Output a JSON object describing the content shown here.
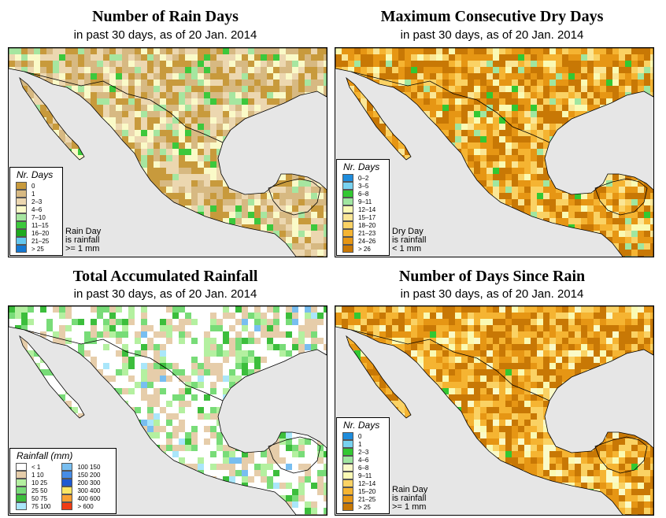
{
  "panels": [
    {
      "title": "Number of Rain Days",
      "subtitle": "in past 30 days, as of  20 Jan. 2014",
      "legend_title": "Nr. Days",
      "legend": [
        {
          "label": "0",
          "color": "#c89a3c"
        },
        {
          "label": "1",
          "color": "#d7b982"
        },
        {
          "label": "2–3",
          "color": "#ecd7b0"
        },
        {
          "label": "4–6",
          "color": "#fafac8"
        },
        {
          "label": "7–10",
          "color": "#a6e6a0"
        },
        {
          "label": "11–15",
          "color": "#3cc83c"
        },
        {
          "label": "16–20",
          "color": "#1eaa1e"
        },
        {
          "label": "21–25",
          "color": "#64c8f0"
        },
        {
          "label": "> 25",
          "color": "#1478d2"
        }
      ],
      "note": [
        "Rain Day",
        "is rainfall",
        ">= 1 mm"
      ]
    },
    {
      "title": "Maximum Consecutive Dry Days",
      "subtitle": "in past 30 days, as of  20 Jan. 2014",
      "legend_title": "Nr. Days",
      "legend": [
        {
          "label": "0–2",
          "color": "#1e8cdc"
        },
        {
          "label": "3–5",
          "color": "#78d2f0"
        },
        {
          "label": "6–8",
          "color": "#32c832"
        },
        {
          "label": "9–11",
          "color": "#a0e6a0"
        },
        {
          "label": "12–14",
          "color": "#fafab4"
        },
        {
          "label": "15–17",
          "color": "#fae696"
        },
        {
          "label": "18–20",
          "color": "#fad264"
        },
        {
          "label": "21–23",
          "color": "#f5b432"
        },
        {
          "label": "24–26",
          "color": "#e69614"
        },
        {
          "label": "> 26",
          "color": "#c87805"
        }
      ],
      "note": [
        "Dry Day",
        "is rainfall",
        "< 1 mm"
      ]
    },
    {
      "title": "Total Accumulated Rainfall",
      "subtitle": "in past 30 days, as of  20 Jan. 2014",
      "legend_title": "Rainfall (mm)",
      "legend": [
        {
          "label": "< 1",
          "color": "#ffffff"
        },
        {
          "label": "1   10",
          "color": "#e6cdaa"
        },
        {
          "label": "10   25",
          "color": "#b4f0a0"
        },
        {
          "label": "25   50",
          "color": "#78dc78"
        },
        {
          "label": "50   75",
          "color": "#3cbe3c"
        },
        {
          "label": "75   100",
          "color": "#aae6fa"
        },
        {
          "label": "100   150",
          "color": "#78bef0"
        },
        {
          "label": "150   200",
          "color": "#468ce6"
        },
        {
          "label": "200   300",
          "color": "#1e5ad2"
        },
        {
          "label": "300   400",
          "color": "#fae664"
        },
        {
          "label": "400   600",
          "color": "#faa032"
        },
        {
          "label": "> 600",
          "color": "#f03c14"
        }
      ],
      "note": []
    },
    {
      "title": "Number of Days Since Rain",
      "subtitle": "in past 30 days, as of  20 Jan. 2014",
      "legend_title": "Nr. Days",
      "legend": [
        {
          "label": "0",
          "color": "#1e8cdc"
        },
        {
          "label": "1",
          "color": "#78d2f0"
        },
        {
          "label": "2–3",
          "color": "#32c832"
        },
        {
          "label": "4–6",
          "color": "#a0e6a0"
        },
        {
          "label": "6–8",
          "color": "#fafac8"
        },
        {
          "label": "9–11",
          "color": "#fafab4"
        },
        {
          "label": "12–14",
          "color": "#fad264"
        },
        {
          "label": "15–20",
          "color": "#f5b432"
        },
        {
          "label": "21–25",
          "color": "#e69614"
        },
        {
          "label": "> 25",
          "color": "#c87805"
        }
      ],
      "note": [
        "Rain Day",
        "is rainfall",
        ">= 1 mm"
      ]
    }
  ]
}
